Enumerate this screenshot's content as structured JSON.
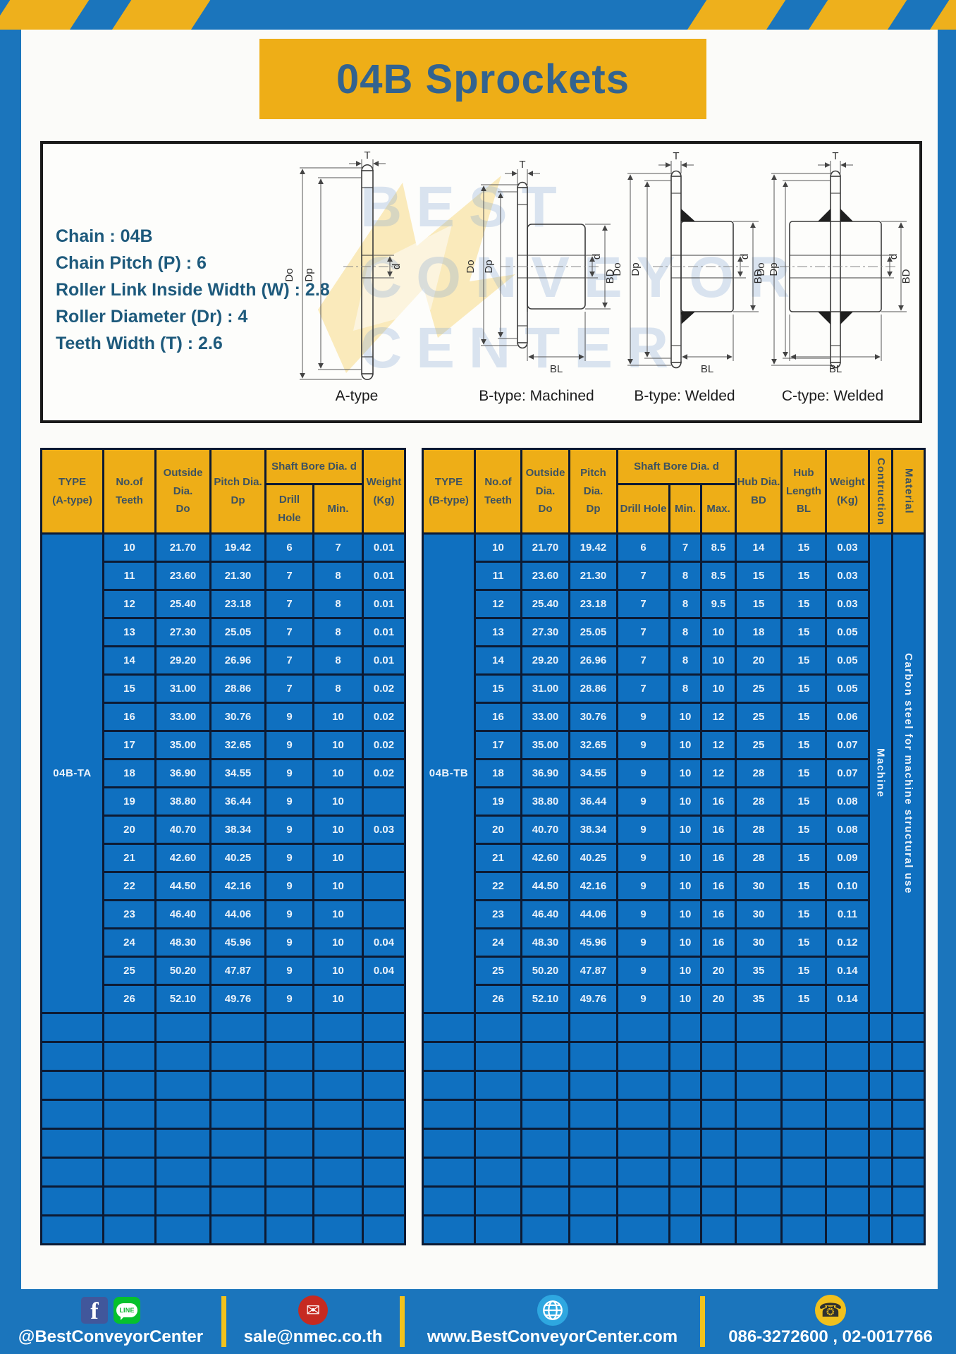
{
  "page": {
    "title": "04B Sprockets"
  },
  "specs": [
    "Chain : 04B",
    "Chain Pitch (P) : 6",
    "Roller Link Inside Width (W) : 2.8",
    "Roller Diameter (Dr) : 4",
    "Teeth Width (T) : 2.6"
  ],
  "drawings": {
    "captions": [
      "A-type",
      "B-type: Machined",
      "B-type: Welded",
      "C-type: Welded"
    ],
    "labels": {
      "T": "T",
      "Do": "Do",
      "Dp": "Dp",
      "d": "d",
      "BD": "BD",
      "BL": "BL"
    },
    "watermark": {
      "line1": "BEST",
      "line2": "CONVEYOR",
      "line3": "CENTER"
    }
  },
  "table_a": {
    "type_label": "04B-TA",
    "headers": {
      "type": "TYPE\n(A-type)",
      "teeth": "No.of\nTeeth",
      "outside": "Outside\nDia.\nDo",
      "pitch": "Pitch Dia.\nDp",
      "shaft_bore": "Shaft Bore Dia. d",
      "drill": "Drill Hole",
      "min": "Min.",
      "weight": "Weight\n(Kg)"
    },
    "rows": [
      [
        "10",
        "21.70",
        "19.42",
        "6",
        "7",
        "0.01"
      ],
      [
        "11",
        "23.60",
        "21.30",
        "7",
        "8",
        "0.01"
      ],
      [
        "12",
        "25.40",
        "23.18",
        "7",
        "8",
        "0.01"
      ],
      [
        "13",
        "27.30",
        "25.05",
        "7",
        "8",
        "0.01"
      ],
      [
        "14",
        "29.20",
        "26.96",
        "7",
        "8",
        "0.01"
      ],
      [
        "15",
        "31.00",
        "28.86",
        "7",
        "8",
        "0.02"
      ],
      [
        "16",
        "33.00",
        "30.76",
        "9",
        "10",
        "0.02"
      ],
      [
        "17",
        "35.00",
        "32.65",
        "9",
        "10",
        "0.02"
      ],
      [
        "18",
        "36.90",
        "34.55",
        "9",
        "10",
        "0.02"
      ],
      [
        "19",
        "38.80",
        "36.44",
        "9",
        "10",
        ""
      ],
      [
        "20",
        "40.70",
        "38.34",
        "9",
        "10",
        "0.03"
      ],
      [
        "21",
        "42.60",
        "40.25",
        "9",
        "10",
        ""
      ],
      [
        "22",
        "44.50",
        "42.16",
        "9",
        "10",
        ""
      ],
      [
        "23",
        "46.40",
        "44.06",
        "9",
        "10",
        ""
      ],
      [
        "24",
        "48.30",
        "45.96",
        "9",
        "10",
        "0.04"
      ],
      [
        "25",
        "50.20",
        "47.87",
        "9",
        "10",
        "0.04"
      ],
      [
        "26",
        "52.10",
        "49.76",
        "9",
        "10",
        ""
      ]
    ],
    "empty_row_count": 8
  },
  "table_b": {
    "type_label": "04B-TB",
    "headers": {
      "type": "TYPE\n(B-type)",
      "teeth": "No.of\nTeeth",
      "outside": "Outside\nDia.\nDo",
      "pitch": "Pitch Dia.\nDp",
      "shaft_bore": "Shaft Bore Dia. d",
      "drill": "Drill Hole",
      "min": "Min.",
      "max": "Max.",
      "hub_dia": "Hub Dia.\nBD",
      "hub_length": "Hub\nLength\nBL",
      "weight": "Weight\n(Kg)",
      "construction": "Contruction",
      "material": "Material"
    },
    "construction_value": "Machine",
    "material_value": "Carbon steel for machine structural use",
    "rows": [
      [
        "10",
        "21.70",
        "19.42",
        "6",
        "7",
        "8.5",
        "14",
        "15",
        "0.03"
      ],
      [
        "11",
        "23.60",
        "21.30",
        "7",
        "8",
        "8.5",
        "15",
        "15",
        "0.03"
      ],
      [
        "12",
        "25.40",
        "23.18",
        "7",
        "8",
        "9.5",
        "15",
        "15",
        "0.03"
      ],
      [
        "13",
        "27.30",
        "25.05",
        "7",
        "8",
        "10",
        "18",
        "15",
        "0.05"
      ],
      [
        "14",
        "29.20",
        "26.96",
        "7",
        "8",
        "10",
        "20",
        "15",
        "0.05"
      ],
      [
        "15",
        "31.00",
        "28.86",
        "7",
        "8",
        "10",
        "25",
        "15",
        "0.05"
      ],
      [
        "16",
        "33.00",
        "30.76",
        "9",
        "10",
        "12",
        "25",
        "15",
        "0.06"
      ],
      [
        "17",
        "35.00",
        "32.65",
        "9",
        "10",
        "12",
        "25",
        "15",
        "0.07"
      ],
      [
        "18",
        "36.90",
        "34.55",
        "9",
        "10",
        "12",
        "28",
        "15",
        "0.07"
      ],
      [
        "19",
        "38.80",
        "36.44",
        "9",
        "10",
        "16",
        "28",
        "15",
        "0.08"
      ],
      [
        "20",
        "40.70",
        "38.34",
        "9",
        "10",
        "16",
        "28",
        "15",
        "0.08"
      ],
      [
        "21",
        "42.60",
        "40.25",
        "9",
        "10",
        "16",
        "28",
        "15",
        "0.09"
      ],
      [
        "22",
        "44.50",
        "42.16",
        "9",
        "10",
        "16",
        "30",
        "15",
        "0.10"
      ],
      [
        "23",
        "46.40",
        "44.06",
        "9",
        "10",
        "16",
        "30",
        "15",
        "0.11"
      ],
      [
        "24",
        "48.30",
        "45.96",
        "9",
        "10",
        "16",
        "30",
        "15",
        "0.12"
      ],
      [
        "25",
        "50.20",
        "47.87",
        "9",
        "10",
        "20",
        "35",
        "15",
        "0.14"
      ],
      [
        "26",
        "52.10",
        "49.76",
        "9",
        "10",
        "20",
        "35",
        "15",
        "0.14"
      ]
    ],
    "empty_row_count": 8
  },
  "footer": {
    "social": {
      "handle": "@BestConveyorCenter",
      "line_text": "LINE",
      "facebook_glyph": "f"
    },
    "email": {
      "address": "sale@nmec.co.th",
      "glyph": "✉"
    },
    "website": {
      "url": "www.BestConveyorCenter.com"
    },
    "phone": {
      "numbers": "086-3272600 , 02-0017766",
      "glyph": "☎"
    }
  },
  "colors": {
    "frame_blue": "#1b75bc",
    "cell_blue": "#0f70c0",
    "accent_yellow": "#eeae17",
    "border_navy": "#0c1a33",
    "footer_divider": "#f2c21c"
  }
}
